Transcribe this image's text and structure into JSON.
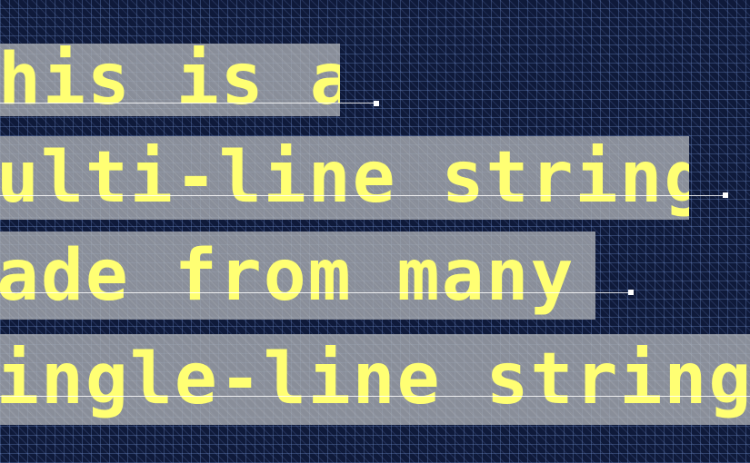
{
  "lines": [
    {
      "text": "his is a"
    },
    {
      "text": "ulti-line string"
    },
    {
      "text": "ade from many"
    },
    {
      "text": "ingle-line strings"
    }
  ],
  "colors": {
    "background": "#0f1a3a",
    "highlight": "#a5a8af",
    "text": "#ffff73",
    "marker": "#ffffff"
  }
}
